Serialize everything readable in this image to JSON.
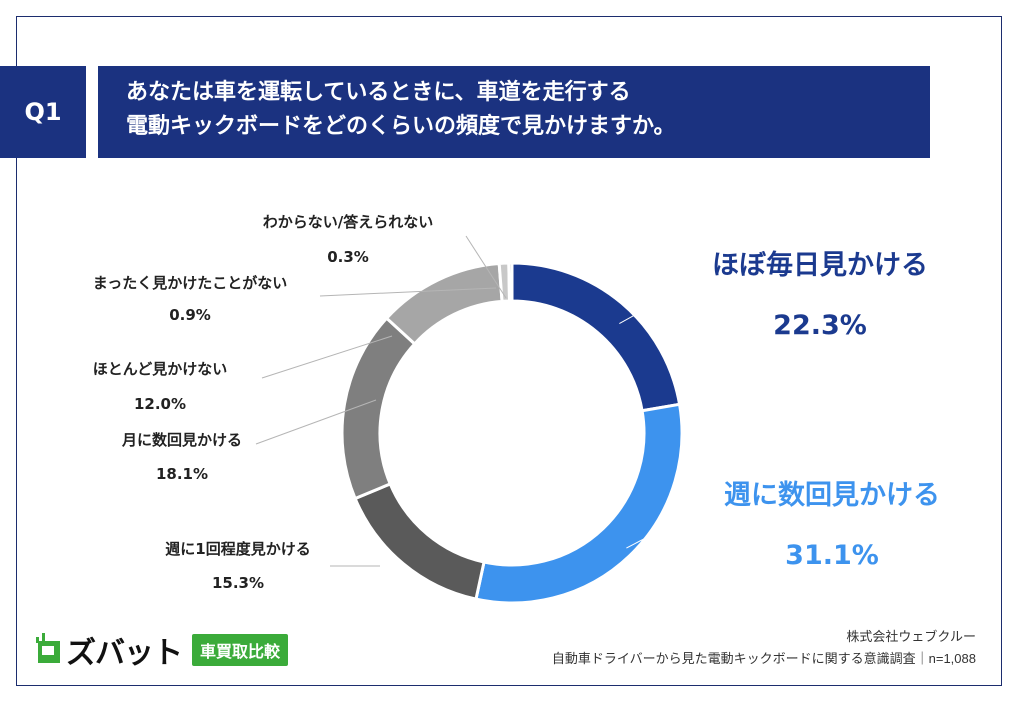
{
  "header": {
    "badge": "Q1",
    "title_line1": "あなたは車を運転しているときに、車道を走行する",
    "title_line2": "電動キックボードをどのくらいの頻度で見かけますか。"
  },
  "chart_data": {
    "type": "pie",
    "donut": true,
    "slices": [
      {
        "label": "ほぼ毎日見かける",
        "value": 22.3,
        "value_label": "22.3%",
        "color": "#1b3a8f"
      },
      {
        "label": "週に数回見かける",
        "value": 31.1,
        "value_label": "31.1%",
        "color": "#3d93ee"
      },
      {
        "label": "週に1回程度見かける",
        "value": 15.3,
        "value_label": "15.3%",
        "color": "#5a5a5a"
      },
      {
        "label": "月に数回見かける",
        "value": 18.1,
        "value_label": "18.1%",
        "color": "#7f7f7f"
      },
      {
        "label": "ほとんど見かけない",
        "value": 12.0,
        "value_label": "12.0%",
        "color": "#a6a6a6"
      },
      {
        "label": "まったく見かけたことがない",
        "value": 0.9,
        "value_label": "0.9%",
        "color": "#c8c8c8"
      },
      {
        "label": "わからない/答えられない",
        "value": 0.3,
        "value_label": "0.3%",
        "color": "#9a9a9a"
      }
    ]
  },
  "footer": {
    "company": "株式会社ウェブクルー",
    "survey": "自動車ドライバーから見た電動キックボードに関する意識調査｜n=1,088"
  },
  "logo": {
    "text": "ズバット",
    "tag": "車買取比較"
  }
}
